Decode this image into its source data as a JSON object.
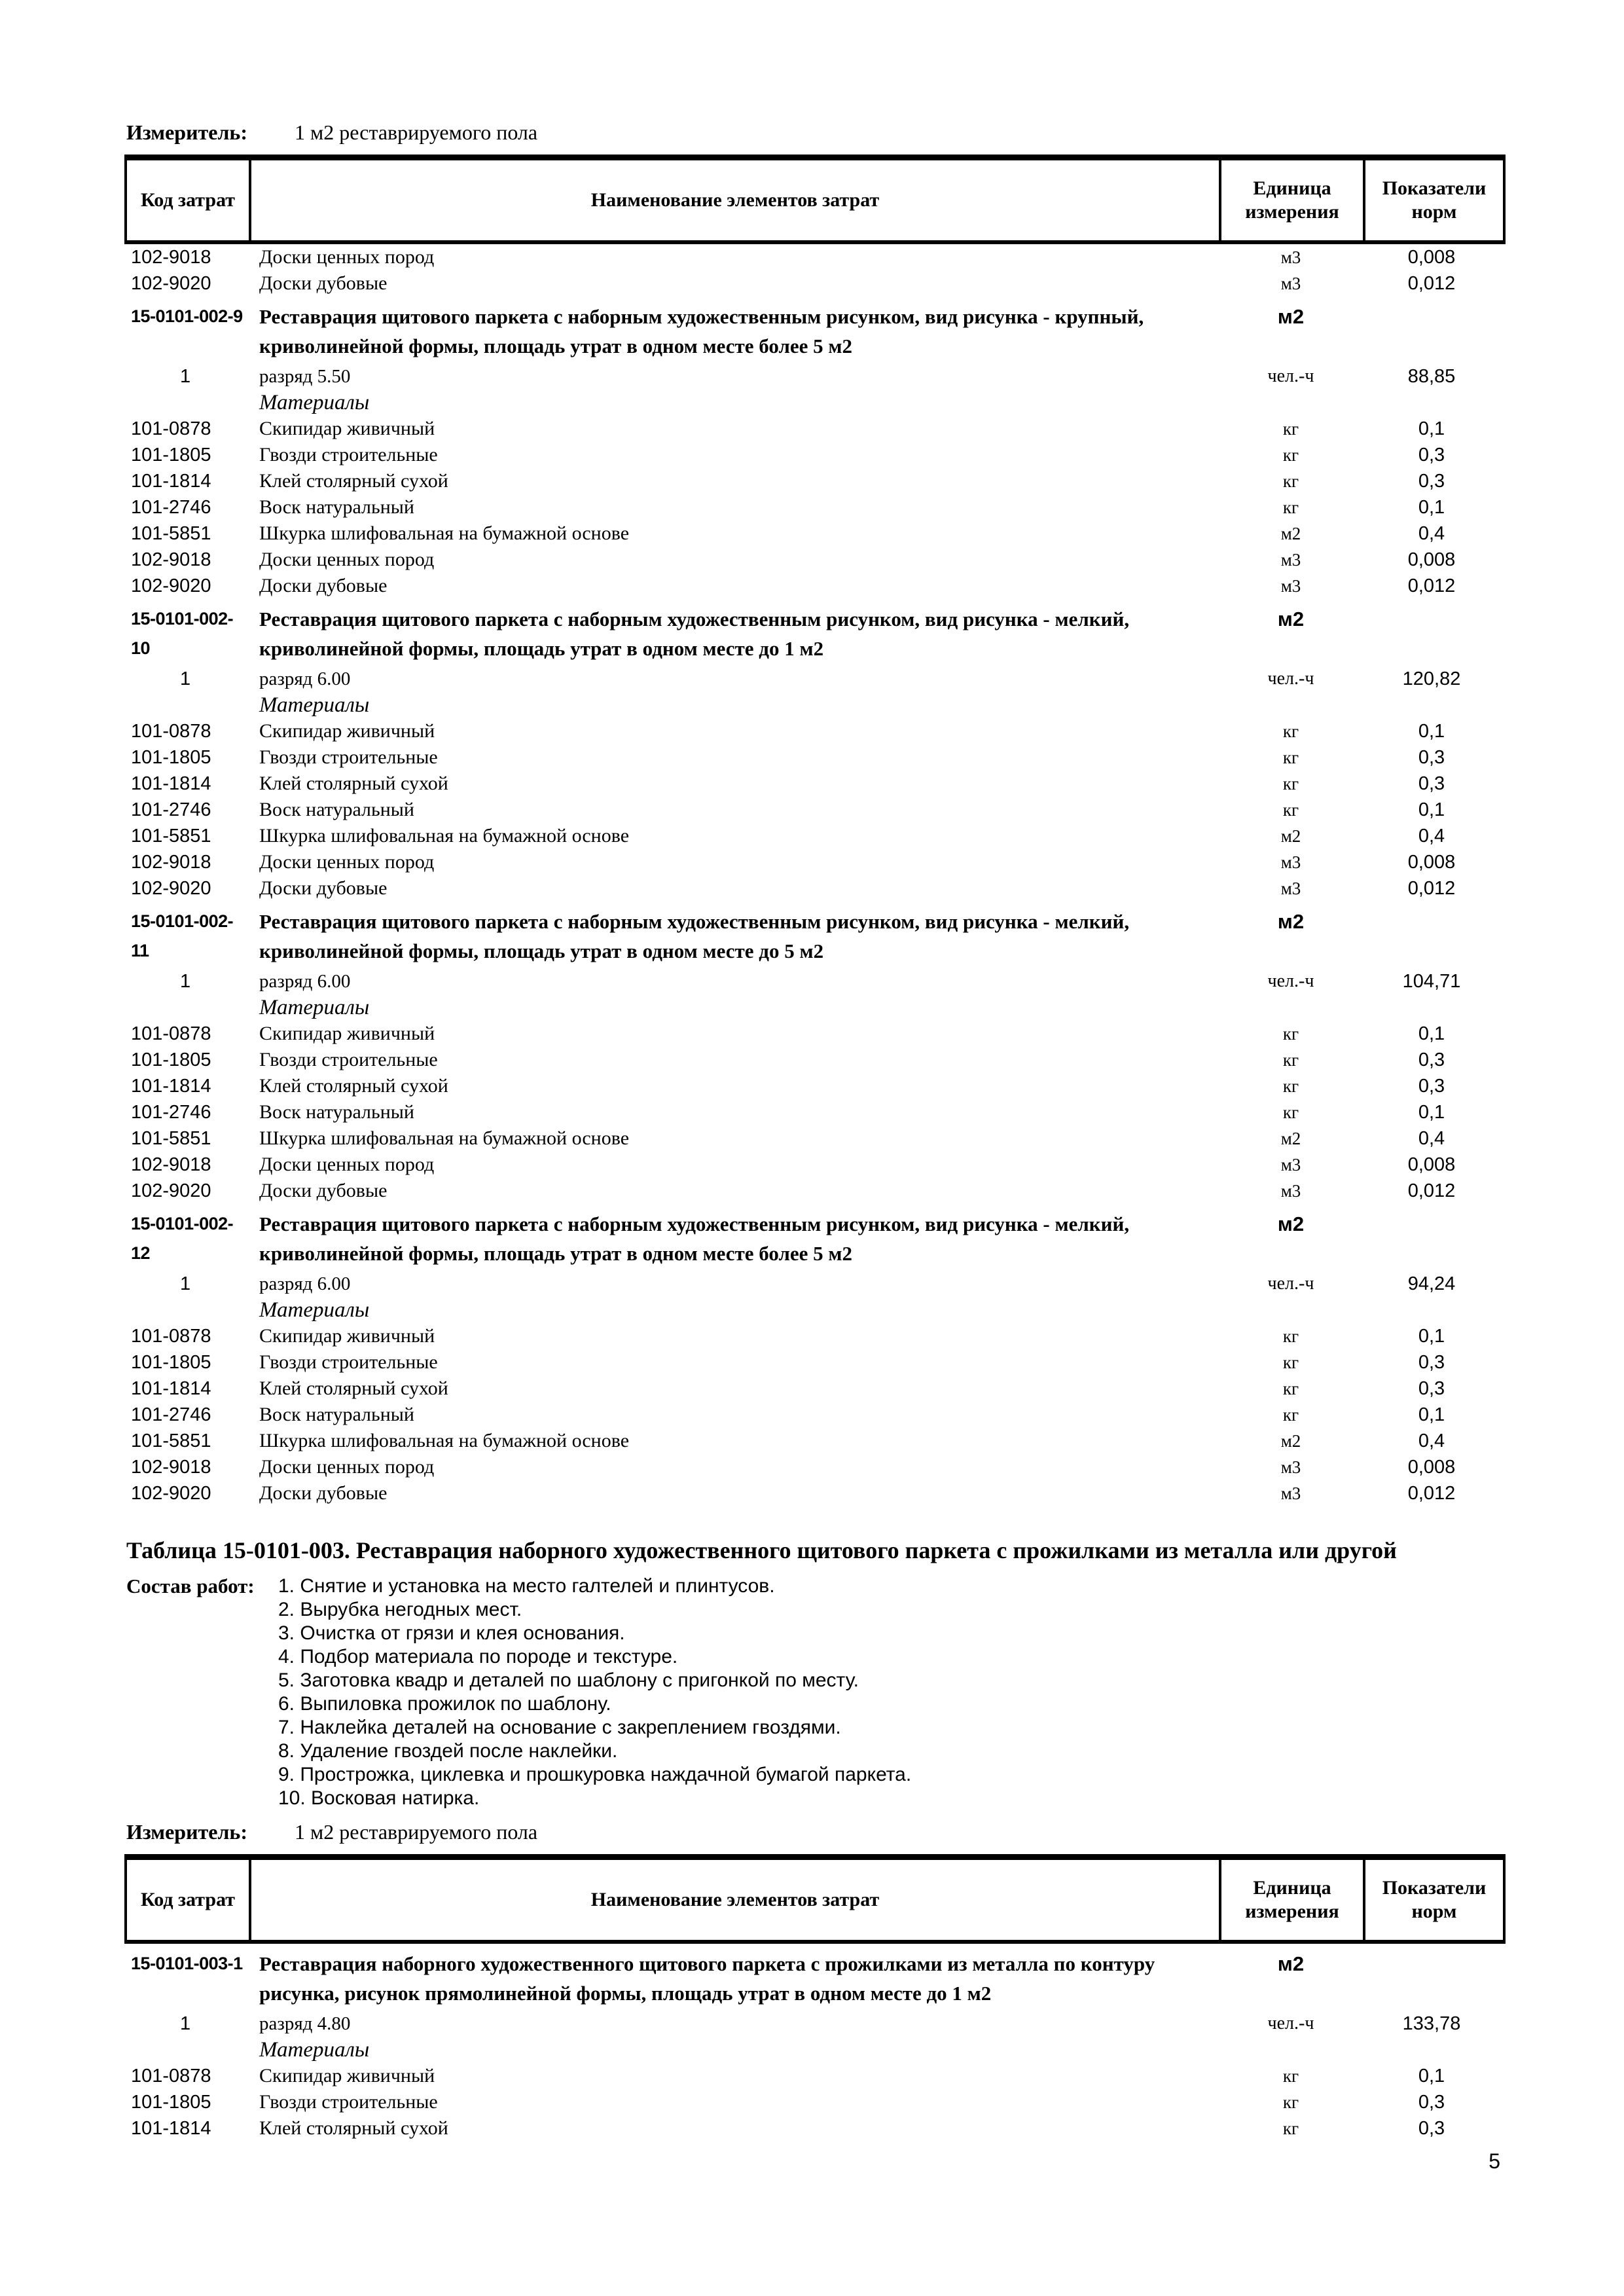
{
  "meta": {
    "page_number": "5"
  },
  "measurer": {
    "label": "Измеритель:",
    "value": "1 м2 реставрируемого пола"
  },
  "columns": {
    "code": "Код затрат",
    "name": "Наименование элементов затрат",
    "unit": "Единица измерения",
    "norm": "Показатели норм"
  },
  "table_002": {
    "rows": [
      {
        "type": "item",
        "code": "102-9018",
        "name": "Доски ценных пород",
        "unit": "м3",
        "norm": "0,008"
      },
      {
        "type": "item",
        "code": "102-9020",
        "name": "Доски дубовые",
        "unit": "м3",
        "norm": "0,012"
      },
      {
        "type": "section",
        "code": "15-0101-002-9",
        "name": "Реставрация щитового паркета с наборным художественным рисунком, вид рисунка - крупный, криволинейной формы, площадь утрат в одном месте более 5 м2",
        "unit": "м2",
        "norm": ""
      },
      {
        "type": "labor",
        "code": "1",
        "name": "разряд 5.50",
        "unit": "чел.-ч",
        "norm": "88,85"
      },
      {
        "type": "materials",
        "name": "Материалы"
      },
      {
        "type": "item",
        "code": "101-0878",
        "name": "Скипидар живичный",
        "unit": "кг",
        "norm": "0,1"
      },
      {
        "type": "item",
        "code": "101-1805",
        "name": "Гвозди строительные",
        "unit": "кг",
        "norm": "0,3"
      },
      {
        "type": "item",
        "code": "101-1814",
        "name": "Клей столярный сухой",
        "unit": "кг",
        "norm": "0,3"
      },
      {
        "type": "item",
        "code": "101-2746",
        "name": "Воск натуральный",
        "unit": "кг",
        "norm": "0,1"
      },
      {
        "type": "item",
        "code": "101-5851",
        "name": "Шкурка шлифовальная на бумажной основе",
        "unit": "м2",
        "norm": "0,4"
      },
      {
        "type": "item",
        "code": "102-9018",
        "name": "Доски ценных пород",
        "unit": "м3",
        "norm": "0,008"
      },
      {
        "type": "item",
        "code": "102-9020",
        "name": "Доски дубовые",
        "unit": "м3",
        "norm": "0,012"
      },
      {
        "type": "section",
        "code": "15-0101-002-10",
        "name": "Реставрация щитового паркета с наборным художественным рисунком, вид рисунка - мелкий, криволинейной формы, площадь утрат в одном месте до 1 м2",
        "unit": "м2",
        "norm": ""
      },
      {
        "type": "labor",
        "code": "1",
        "name": "разряд 6.00",
        "unit": "чел.-ч",
        "norm": "120,82"
      },
      {
        "type": "materials",
        "name": "Материалы"
      },
      {
        "type": "item",
        "code": "101-0878",
        "name": "Скипидар живичный",
        "unit": "кг",
        "norm": "0,1"
      },
      {
        "type": "item",
        "code": "101-1805",
        "name": "Гвозди строительные",
        "unit": "кг",
        "norm": "0,3"
      },
      {
        "type": "item",
        "code": "101-1814",
        "name": "Клей столярный сухой",
        "unit": "кг",
        "norm": "0,3"
      },
      {
        "type": "item",
        "code": "101-2746",
        "name": "Воск натуральный",
        "unit": "кг",
        "norm": "0,1"
      },
      {
        "type": "item",
        "code": "101-5851",
        "name": "Шкурка шлифовальная на бумажной основе",
        "unit": "м2",
        "norm": "0,4"
      },
      {
        "type": "item",
        "code": "102-9018",
        "name": "Доски ценных пород",
        "unit": "м3",
        "norm": "0,008"
      },
      {
        "type": "item",
        "code": "102-9020",
        "name": "Доски дубовые",
        "unit": "м3",
        "norm": "0,012"
      },
      {
        "type": "section",
        "code": "15-0101-002-11",
        "name": "Реставрация щитового паркета с наборным художественным рисунком, вид рисунка - мелкий, криволинейной формы, площадь утрат в одном месте до 5 м2",
        "unit": "м2",
        "norm": ""
      },
      {
        "type": "labor",
        "code": "1",
        "name": "разряд 6.00",
        "unit": "чел.-ч",
        "norm": "104,71"
      },
      {
        "type": "materials",
        "name": "Материалы"
      },
      {
        "type": "item",
        "code": "101-0878",
        "name": "Скипидар живичный",
        "unit": "кг",
        "norm": "0,1"
      },
      {
        "type": "item",
        "code": "101-1805",
        "name": "Гвозди строительные",
        "unit": "кг",
        "norm": "0,3"
      },
      {
        "type": "item",
        "code": "101-1814",
        "name": "Клей столярный сухой",
        "unit": "кг",
        "norm": "0,3"
      },
      {
        "type": "item",
        "code": "101-2746",
        "name": "Воск натуральный",
        "unit": "кг",
        "norm": "0,1"
      },
      {
        "type": "item",
        "code": "101-5851",
        "name": "Шкурка шлифовальная на бумажной основе",
        "unit": "м2",
        "norm": "0,4"
      },
      {
        "type": "item",
        "code": "102-9018",
        "name": "Доски ценных пород",
        "unit": "м3",
        "norm": "0,008"
      },
      {
        "type": "item",
        "code": "102-9020",
        "name": "Доски дубовые",
        "unit": "м3",
        "norm": "0,012"
      },
      {
        "type": "section",
        "code": "15-0101-002-12",
        "name": "Реставрация щитового паркета с наборным художественным рисунком, вид рисунка - мелкий, криволинейной формы, площадь утрат в одном месте более 5 м2",
        "unit": "м2",
        "norm": ""
      },
      {
        "type": "labor",
        "code": "1",
        "name": "разряд 6.00",
        "unit": "чел.-ч",
        "norm": "94,24"
      },
      {
        "type": "materials",
        "name": "Материалы"
      },
      {
        "type": "item",
        "code": "101-0878",
        "name": "Скипидар живичный",
        "unit": "кг",
        "norm": "0,1"
      },
      {
        "type": "item",
        "code": "101-1805",
        "name": "Гвозди строительные",
        "unit": "кг",
        "norm": "0,3"
      },
      {
        "type": "item",
        "code": "101-1814",
        "name": "Клей столярный сухой",
        "unit": "кг",
        "norm": "0,3"
      },
      {
        "type": "item",
        "code": "101-2746",
        "name": "Воск натуральный",
        "unit": "кг",
        "norm": "0,1"
      },
      {
        "type": "item",
        "code": "101-5851",
        "name": "Шкурка шлифовальная на бумажной основе",
        "unit": "м2",
        "norm": "0,4"
      },
      {
        "type": "item",
        "code": "102-9018",
        "name": "Доски ценных пород",
        "unit": "м3",
        "norm": "0,008"
      },
      {
        "type": "item",
        "code": "102-9020",
        "name": "Доски дубовые",
        "unit": "м3",
        "norm": "0,012"
      }
    ]
  },
  "table_003": {
    "title": "Таблица 15-0101-003. Реставрация наборного художественного щитового паркета с прожилками из металла или другой",
    "works_label": "Состав работ:",
    "works": [
      "1. Снятие и установка на место галтелей и плинтусов.",
      "2. Вырубка негодных мест.",
      "3. Очистка от грязи и клея основания.",
      "4. Подбор материала по породе и текстуре.",
      "5. Заготовка квадр и деталей по шаблону с пригонкой по месту.",
      "6. Выпиловка прожилок по шаблону.",
      "7. Наклейка деталей на основание с закреплением гвоздями.",
      "8. Удаление гвоздей после наклейки.",
      "9. Прострожка, циклевка и прошкуровка наждачной бумагой паркета.",
      "10. Восковая натирка."
    ],
    "rows": [
      {
        "type": "section",
        "code": "15-0101-003-1",
        "name": "Реставрация наборного художественного щитового паркета с прожилками из металла по контуру рисунка, рисунок прямолинейной формы, площадь утрат в одном месте до 1 м2",
        "unit": "м2",
        "norm": ""
      },
      {
        "type": "labor",
        "code": "1",
        "name": "разряд 4.80",
        "unit": "чел.-ч",
        "norm": "133,78"
      },
      {
        "type": "materials",
        "name": "Материалы"
      },
      {
        "type": "item",
        "code": "101-0878",
        "name": "Скипидар живичный",
        "unit": "кг",
        "norm": "0,1"
      },
      {
        "type": "item",
        "code": "101-1805",
        "name": "Гвозди строительные",
        "unit": "кг",
        "norm": "0,3"
      },
      {
        "type": "item",
        "code": "101-1814",
        "name": "Клей столярный сухой",
        "unit": "кг",
        "norm": "0,3"
      }
    ]
  }
}
